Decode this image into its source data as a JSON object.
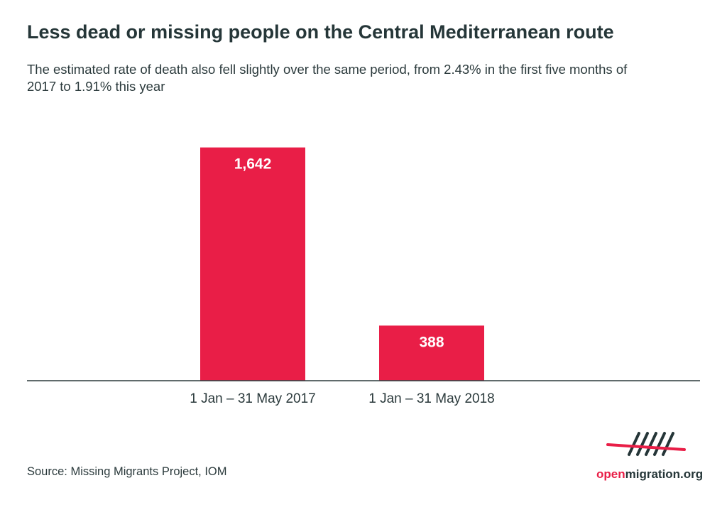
{
  "header": {
    "title": "Less dead or missing people on the Central Mediterranean route",
    "subtitle": "The estimated rate of death also fell slightly over the same period, from 2.43% in the first five months of 2017 to 1.91% this year"
  },
  "chart_data": {
    "type": "bar",
    "categories": [
      "1 Jan – 31 May 2017",
      "1 Jan – 31 May 2018"
    ],
    "values": [
      1642,
      388
    ],
    "value_labels": [
      "1,642",
      "388"
    ],
    "ylim": [
      0,
      1800
    ],
    "grid": false,
    "legend": "none",
    "colors": {
      "bar": "#e91e47",
      "axis": "#2b3a3c"
    }
  },
  "footer": {
    "source": "Source: Missing Migrants Project, IOM",
    "logo": {
      "icon": "openmigration-logo-icon",
      "text_accent": "open",
      "text_rest": "migration.org"
    }
  }
}
